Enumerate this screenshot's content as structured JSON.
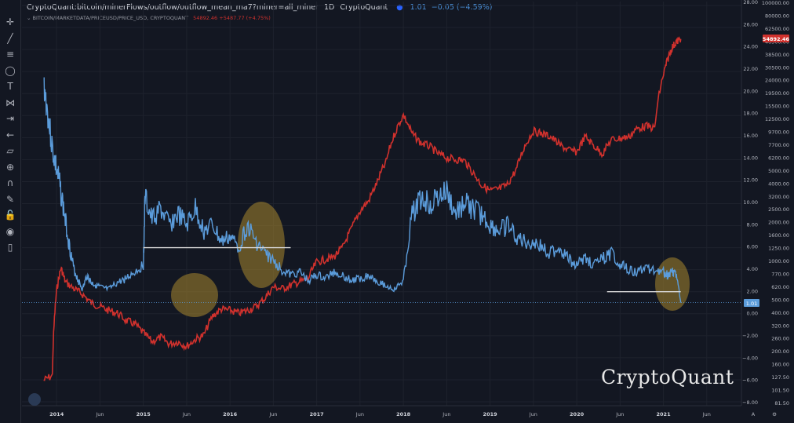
{
  "header": {
    "title": "CryptoQuant:bitcoin/minerFlows/outflow/outflow_mean_ma7?miner=all_miner",
    "interval": "1D",
    "source": "CryptoQuant",
    "value": "1.01",
    "change": "−0.05 (−4.59%)"
  },
  "subheader": {
    "label": "BITCOIN/MARKETDATA/PRICEUSD/PRICE_USD, CRYPTOQUANT",
    "price_values": "54892.46 +5487.77 (+4.75%)"
  },
  "watermark": "CryptoQuant",
  "colors": {
    "outflow": "#5b9cdb",
    "price": "#d0312d",
    "background": "#131722",
    "highlight": "#a8862e"
  },
  "toolbar_icons": [
    "crosshair-icon",
    "trend-line-icon",
    "fib-icon",
    "shapes-icon",
    "text-icon",
    "pattern-icon",
    "projection-icon",
    "back-arrow-icon",
    "ruler-icon",
    "zoom-icon",
    "magnet-icon",
    "lock-draw-icon",
    "lock-icon",
    "eye-icon",
    "trash-icon"
  ],
  "chart_data": {
    "type": "line",
    "x_ticks": [
      "2014",
      "Jun",
      "2015",
      "Jun",
      "2016",
      "Jun",
      "2017",
      "Jun",
      "2018",
      "Jun",
      "2019",
      "Jun",
      "2020",
      "Jun",
      "2021",
      "Jun"
    ],
    "y_right_outer_ticks": [
      "100000.00",
      "80000.00",
      "62500.00",
      "48500.00",
      "38500.00",
      "30500.00",
      "24000.00",
      "19500.00",
      "15500.00",
      "12500.00",
      "9700.00",
      "7700.00",
      "6200.00",
      "5000.00",
      "4000.00",
      "3200.00",
      "2500.00",
      "2000.00",
      "1600.00",
      "1250.00",
      "1000.00",
      "770.00",
      "620.00",
      "500.00",
      "400.00",
      "320.00",
      "260.00",
      "200.00",
      "160.00",
      "127.50",
      "101.50",
      "81.50"
    ],
    "y_right_inner_ticks": [
      "28.00",
      "26.00",
      "24.00",
      "22.00",
      "20.00",
      "18.00",
      "16.00",
      "14.00",
      "12.00",
      "10.00",
      "8.00",
      "6.00",
      "4.00",
      "2.00",
      "0.00",
      "−2.00",
      "−4.00",
      "−6.00",
      "−8.00"
    ],
    "price_label": "54892.46",
    "outflow_label": "1.01",
    "series": [
      {
        "name": "outflow_mean_ma7",
        "axis": "left",
        "x": [
          2013.85,
          2013.9,
          2013.95,
          2014.0,
          2014.05,
          2014.1,
          2014.15,
          2014.2,
          2014.25,
          2014.3,
          2014.35,
          2014.4,
          2014.45,
          2014.5,
          2014.6,
          2014.7,
          2014.8,
          2014.9,
          2015.0,
          2015.02,
          2015.1,
          2015.2,
          2015.3,
          2015.4,
          2015.5,
          2015.6,
          2015.7,
          2015.8,
          2015.9,
          2016.0,
          2016.1,
          2016.2,
          2016.3,
          2016.4,
          2016.5,
          2016.6,
          2016.7,
          2016.8,
          2016.9,
          2017.0,
          2017.1,
          2017.2,
          2017.3,
          2017.4,
          2017.5,
          2017.6,
          2017.7,
          2017.8,
          2017.9,
          2018.0,
          2018.1,
          2018.2,
          2018.3,
          2018.4,
          2018.5,
          2018.6,
          2018.7,
          2018.8,
          2018.9,
          2019.0,
          2019.1,
          2019.2,
          2019.3,
          2019.4,
          2019.5,
          2019.6,
          2019.7,
          2019.8,
          2019.9,
          2020.0,
          2020.1,
          2020.2,
          2020.3,
          2020.4,
          2020.5,
          2020.6,
          2020.7,
          2020.8,
          2020.9,
          2021.0,
          2021.05,
          2021.1,
          2021.15,
          2021.2
        ],
        "values": [
          21.0,
          18.0,
          15.0,
          13.0,
          11.0,
          8.5,
          6.0,
          4.0,
          3.0,
          2.2,
          3.5,
          2.8,
          2.6,
          2.4,
          2.2,
          2.8,
          3.2,
          3.8,
          4.4,
          10.5,
          8.5,
          9.5,
          8.0,
          9.0,
          8.0,
          9.5,
          7.5,
          8.0,
          6.5,
          7.0,
          6.0,
          8.0,
          6.5,
          5.5,
          4.8,
          4.0,
          3.5,
          3.8,
          3.0,
          3.5,
          3.2,
          3.8,
          3.5,
          3.0,
          3.2,
          3.5,
          3.0,
          2.5,
          2.2,
          3.0,
          9.0,
          10.5,
          10.0,
          10.5,
          11.0,
          9.0,
          10.0,
          9.5,
          9.0,
          8.0,
          7.5,
          8.0,
          7.0,
          6.5,
          6.5,
          6.0,
          5.5,
          6.0,
          5.0,
          4.5,
          5.0,
          4.5,
          5.0,
          5.5,
          4.5,
          4.0,
          3.8,
          4.2,
          4.0,
          3.8,
          3.5,
          4.0,
          3.5,
          1.01
        ],
        "ylim": [
          -8,
          28
        ]
      },
      {
        "name": "price_usd",
        "axis": "right",
        "x": [
          2013.85,
          2013.95,
          2014.0,
          2014.05,
          2014.1,
          2014.2,
          2014.3,
          2014.4,
          2014.5,
          2014.6,
          2014.7,
          2014.8,
          2014.9,
          2015.0,
          2015.1,
          2015.2,
          2015.3,
          2015.4,
          2015.5,
          2015.6,
          2015.7,
          2015.8,
          2015.9,
          2016.0,
          2016.1,
          2016.2,
          2016.3,
          2016.4,
          2016.5,
          2016.6,
          2016.7,
          2016.8,
          2016.9,
          2017.0,
          2017.1,
          2017.2,
          2017.3,
          2017.4,
          2017.5,
          2017.6,
          2017.7,
          2017.8,
          2017.9,
          2018.0,
          2018.1,
          2018.2,
          2018.3,
          2018.4,
          2018.5,
          2018.6,
          2018.7,
          2018.8,
          2018.9,
          2019.0,
          2019.1,
          2019.2,
          2019.3,
          2019.4,
          2019.5,
          2019.6,
          2019.7,
          2019.8,
          2019.9,
          2020.0,
          2020.1,
          2020.2,
          2020.3,
          2020.4,
          2020.5,
          2020.6,
          2020.7,
          2020.8,
          2020.9,
          2021.0,
          2021.05,
          2021.1,
          2021.15,
          2021.2
        ],
        "values": [
          120,
          130,
          600,
          900,
          700,
          620,
          560,
          480,
          450,
          420,
          400,
          350,
          330,
          280,
          240,
          260,
          230,
          240,
          220,
          250,
          270,
          380,
          430,
          420,
          400,
          420,
          450,
          520,
          640,
          620,
          660,
          700,
          740,
          1000,
          1050,
          1100,
          1300,
          1800,
          2500,
          3000,
          4200,
          6000,
          10000,
          14000,
          10000,
          8500,
          8000,
          7000,
          6500,
          6300,
          6200,
          5000,
          4000,
          3600,
          3700,
          4000,
          5200,
          8000,
          10500,
          10000,
          9500,
          8200,
          7500,
          7200,
          9500,
          8000,
          7000,
          9000,
          9200,
          9500,
          11000,
          11500,
          11000,
          29000,
          38000,
          47000,
          52000,
          54892.46
        ],
        "ylim": [
          81.5,
          100000
        ],
        "scale": "log"
      }
    ],
    "annotations": [
      {
        "type": "hline",
        "x": [
          2015.0,
          2016.7
        ],
        "y": 6.0
      },
      {
        "type": "hline",
        "x": [
          2020.35,
          2021.2
        ],
        "y": 2.0
      }
    ]
  }
}
